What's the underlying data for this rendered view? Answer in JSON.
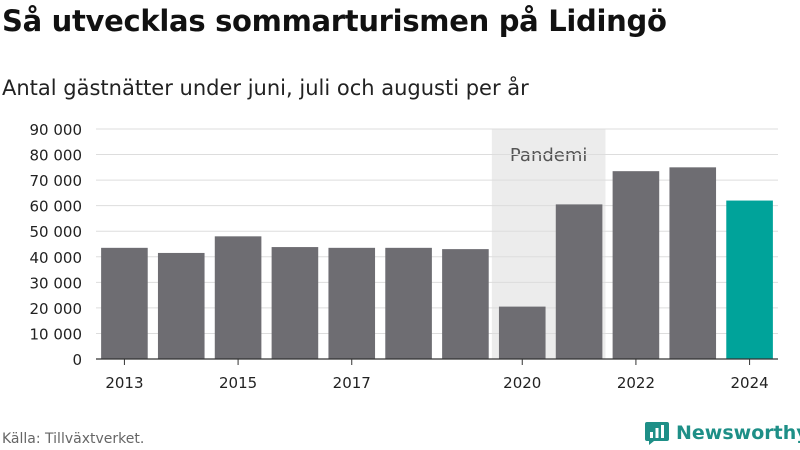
{
  "header": {
    "title": "Så utvecklas sommarturismen på Lidingö",
    "subtitle": "Antal gästnätter under juni, juli och augusti per år"
  },
  "footer": {
    "source": "Källa: Tillväxtverket.",
    "brand": "Newsworthy"
  },
  "chart_data": {
    "type": "bar",
    "categories": [
      "2013",
      "2014",
      "2015",
      "2016",
      "2017",
      "2018",
      "2019",
      "2020",
      "2021",
      "2022",
      "2023",
      "2024"
    ],
    "values": [
      43500,
      41500,
      48000,
      43800,
      43500,
      43500,
      43000,
      20500,
      60500,
      73500,
      75000,
      62000
    ],
    "x_tick_labels": [
      "2013",
      "2015",
      "2017",
      "2020",
      "2022",
      "2024"
    ],
    "y_ticks": [
      0,
      10000,
      20000,
      30000,
      40000,
      50000,
      60000,
      70000,
      80000,
      90000
    ],
    "y_tick_labels": [
      "0",
      "10 000",
      "20 000",
      "30 000",
      "40 000",
      "50 000",
      "60 000",
      "70 000",
      "80 000",
      "90 000"
    ],
    "ylim": [
      0,
      90000
    ],
    "grid": true,
    "highlight": {
      "label": "Pandemi",
      "from": "2020",
      "to": "2021"
    },
    "colors": {
      "bar": "#6e6d72",
      "highlight_bar": "#00a39a",
      "band": "#ececec",
      "grid": "#dddddd"
    },
    "highlighted_category": "2024"
  }
}
